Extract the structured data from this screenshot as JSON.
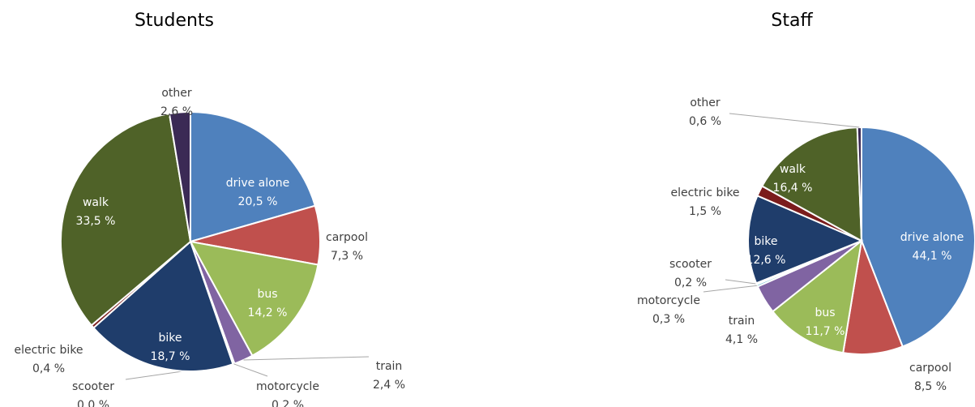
{
  "chart_data": [
    {
      "type": "pie",
      "title": "Students",
      "categories": [
        "drive alone",
        "carpool",
        "bus",
        "train",
        "motorcycle",
        "scooter",
        "bike",
        "electric bike",
        "walk",
        "other"
      ],
      "values": [
        20.5,
        7.3,
        14.2,
        2.4,
        0.2,
        0.0,
        18.7,
        0.4,
        33.5,
        2.6
      ],
      "value_labels": [
        "20,5 %",
        "7,3 %",
        "14,2 %",
        "2,4 %",
        "0,2 %",
        "0,0 %",
        "18,7 %",
        "0,4 %",
        "33,5 %",
        "2,6 %"
      ],
      "colors": [
        "#4f81bd",
        "#c0504d",
        "#9bbb59",
        "#8064a2",
        "#4bacc6",
        "#f79646",
        "#1f3d6b",
        "#7b1c1c",
        "#4f6228",
        "#3b2a55"
      ]
    },
    {
      "type": "pie",
      "title": "Staff",
      "categories": [
        "drive alone",
        "carpool",
        "bus",
        "train",
        "motorcycle",
        "scooter",
        "bike",
        "electric bike",
        "walk",
        "other"
      ],
      "values": [
        44.1,
        8.5,
        11.7,
        4.1,
        0.3,
        0.2,
        12.6,
        1.5,
        16.4,
        0.6
      ],
      "value_labels": [
        "44,1 %",
        "8,5 %",
        "11,7 %",
        "4,1 %",
        "0,3 %",
        "0,2 %",
        "12,6 %",
        "1,5 %",
        "16,4 %",
        "0,6 %"
      ],
      "colors": [
        "#4f81bd",
        "#c0504d",
        "#9bbb59",
        "#8064a2",
        "#4bacc6",
        "#f79646",
        "#1f3d6b",
        "#7b1c1c",
        "#4f6228",
        "#3b2a55"
      ]
    }
  ]
}
